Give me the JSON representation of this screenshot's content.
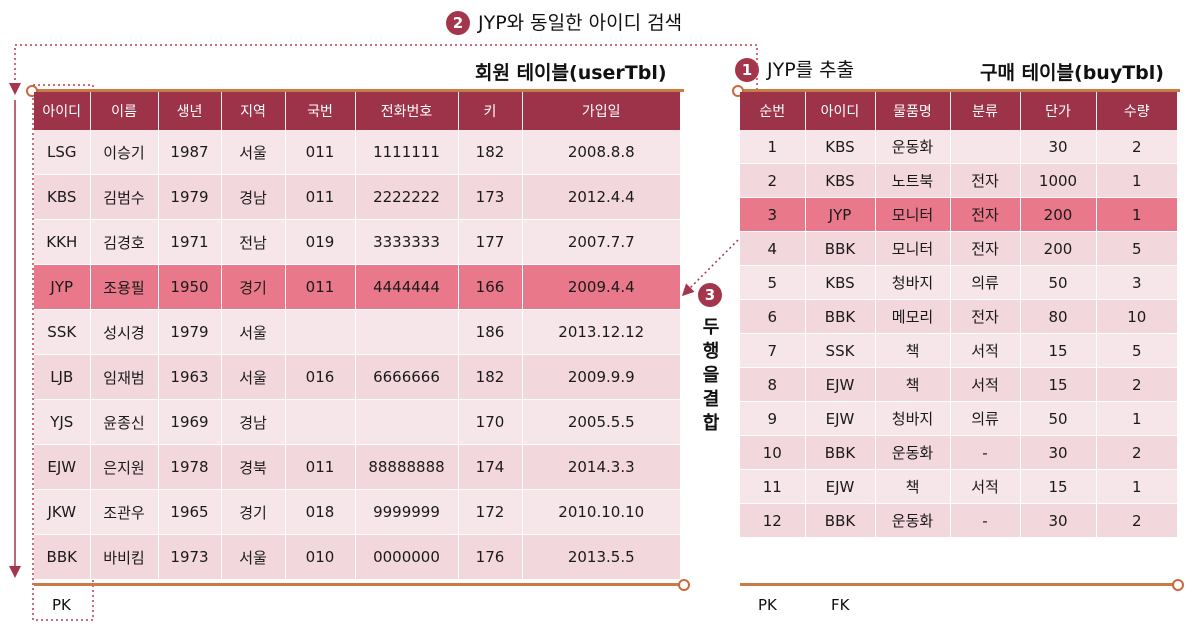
{
  "steps": {
    "step1": {
      "number": "1",
      "text": "JYP를 추출"
    },
    "step2": {
      "number": "2",
      "text": "JYP와 동일한 아이디 검색"
    },
    "step3": {
      "number": "3",
      "text": "두 행을 결합"
    }
  },
  "user_table": {
    "title": "회원 테이블(userTbl)",
    "headers": [
      "아이디",
      "이름",
      "생년",
      "지역",
      "국번",
      "전화번호",
      "키",
      "가입일"
    ],
    "rows": [
      [
        "LSG",
        "이승기",
        "1987",
        "서울",
        "011",
        "1111111",
        "182",
        "2008.8.8"
      ],
      [
        "KBS",
        "김범수",
        "1979",
        "경남",
        "011",
        "2222222",
        "173",
        "2012.4.4"
      ],
      [
        "KKH",
        "김경호",
        "1971",
        "전남",
        "019",
        "3333333",
        "177",
        "2007.7.7"
      ],
      [
        "JYP",
        "조용필",
        "1950",
        "경기",
        "011",
        "4444444",
        "166",
        "2009.4.4"
      ],
      [
        "SSK",
        "성시경",
        "1979",
        "서울",
        "",
        "",
        "186",
        "2013.12.12"
      ],
      [
        "LJB",
        "임재범",
        "1963",
        "서울",
        "016",
        "6666666",
        "182",
        "2009.9.9"
      ],
      [
        "YJS",
        "윤종신",
        "1969",
        "경남",
        "",
        "",
        "170",
        "2005.5.5"
      ],
      [
        "EJW",
        "은지원",
        "1978",
        "경북",
        "011",
        "88888888",
        "174",
        "2014.3.3"
      ],
      [
        "JKW",
        "조관우",
        "1965",
        "경기",
        "018",
        "9999999",
        "172",
        "2010.10.10"
      ],
      [
        "BBK",
        "바비킴",
        "1973",
        "서울",
        "010",
        "0000000",
        "176",
        "2013.5.5"
      ]
    ],
    "highlight_row": 3,
    "key_label": "PK"
  },
  "buy_table": {
    "title": "구매 테이블(buyTbl)",
    "headers": [
      "순번",
      "아이디",
      "물품명",
      "분류",
      "단가",
      "수량"
    ],
    "rows": [
      [
        "1",
        "KBS",
        "운동화",
        "",
        "30",
        "2"
      ],
      [
        "2",
        "KBS",
        "노트북",
        "전자",
        "1000",
        "1"
      ],
      [
        "3",
        "JYP",
        "모니터",
        "전자",
        "200",
        "1"
      ],
      [
        "4",
        "BBK",
        "모니터",
        "전자",
        "200",
        "5"
      ],
      [
        "5",
        "KBS",
        "청바지",
        "의류",
        "50",
        "3"
      ],
      [
        "6",
        "BBK",
        "메모리",
        "전자",
        "80",
        "10"
      ],
      [
        "7",
        "SSK",
        "책",
        "서적",
        "15",
        "5"
      ],
      [
        "8",
        "EJW",
        "책",
        "서적",
        "15",
        "2"
      ],
      [
        "9",
        "EJW",
        "청바지",
        "의류",
        "50",
        "1"
      ],
      [
        "10",
        "BBK",
        "운동화",
        "-",
        "30",
        "2"
      ],
      [
        "11",
        "EJW",
        "책",
        "서적",
        "15",
        "1"
      ],
      [
        "12",
        "BBK",
        "운동화",
        "-",
        "30",
        "2"
      ]
    ],
    "highlight_row": 2,
    "key_labels": [
      "PK",
      "FK"
    ]
  },
  "colors": {
    "header": "#9d3349",
    "highlight": "#e8788a",
    "row_light": "#f7e6e9",
    "row_dark": "#f2d7dd",
    "accent": "#a3364a",
    "bar": "#c97a45"
  }
}
